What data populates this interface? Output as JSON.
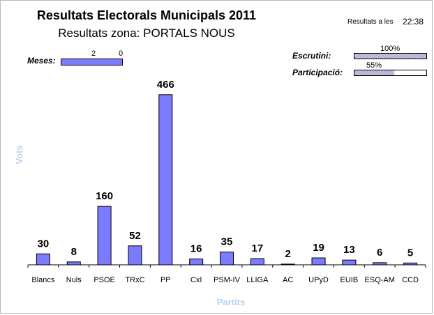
{
  "header": {
    "title": "Resultats Electorals Municipals 2011",
    "subtitle": "Resultats zona: PORTALS NOUS",
    "time_label": "Resultats a les",
    "time_value": "22:38"
  },
  "indicators": {
    "meses": {
      "label": "Meses:",
      "values": [
        "2",
        "0"
      ],
      "fill_fraction": 1.0
    },
    "escrutini": {
      "label": "Escrutini:",
      "percent_text": "100%",
      "fill_fraction": 1.0
    },
    "participacio": {
      "label": "Participació:",
      "percent_text": "55%",
      "fill_fraction": 0.55
    }
  },
  "colors": {
    "bar": "#7b7bff",
    "bar_stroke": "#000000",
    "axis_title": "#b7d3ef",
    "progress_hatch": "#a9a9cf"
  },
  "chart_data": {
    "type": "bar",
    "title": "",
    "xlabel": "Partits",
    "ylabel": "Vots",
    "categories": [
      "Blancs",
      "Nuls",
      "PSOE",
      "TRxC",
      "PP",
      "CxI",
      "PSM-IV",
      "LLIGA",
      "AC",
      "UPyD",
      "EUIB",
      "ESQ-AM",
      "CCD"
    ],
    "values": [
      30,
      8,
      160,
      52,
      466,
      16,
      35,
      17,
      2,
      19,
      13,
      6,
      5
    ],
    "ylim": [
      0,
      500
    ],
    "grid": false,
    "legend": "none"
  }
}
